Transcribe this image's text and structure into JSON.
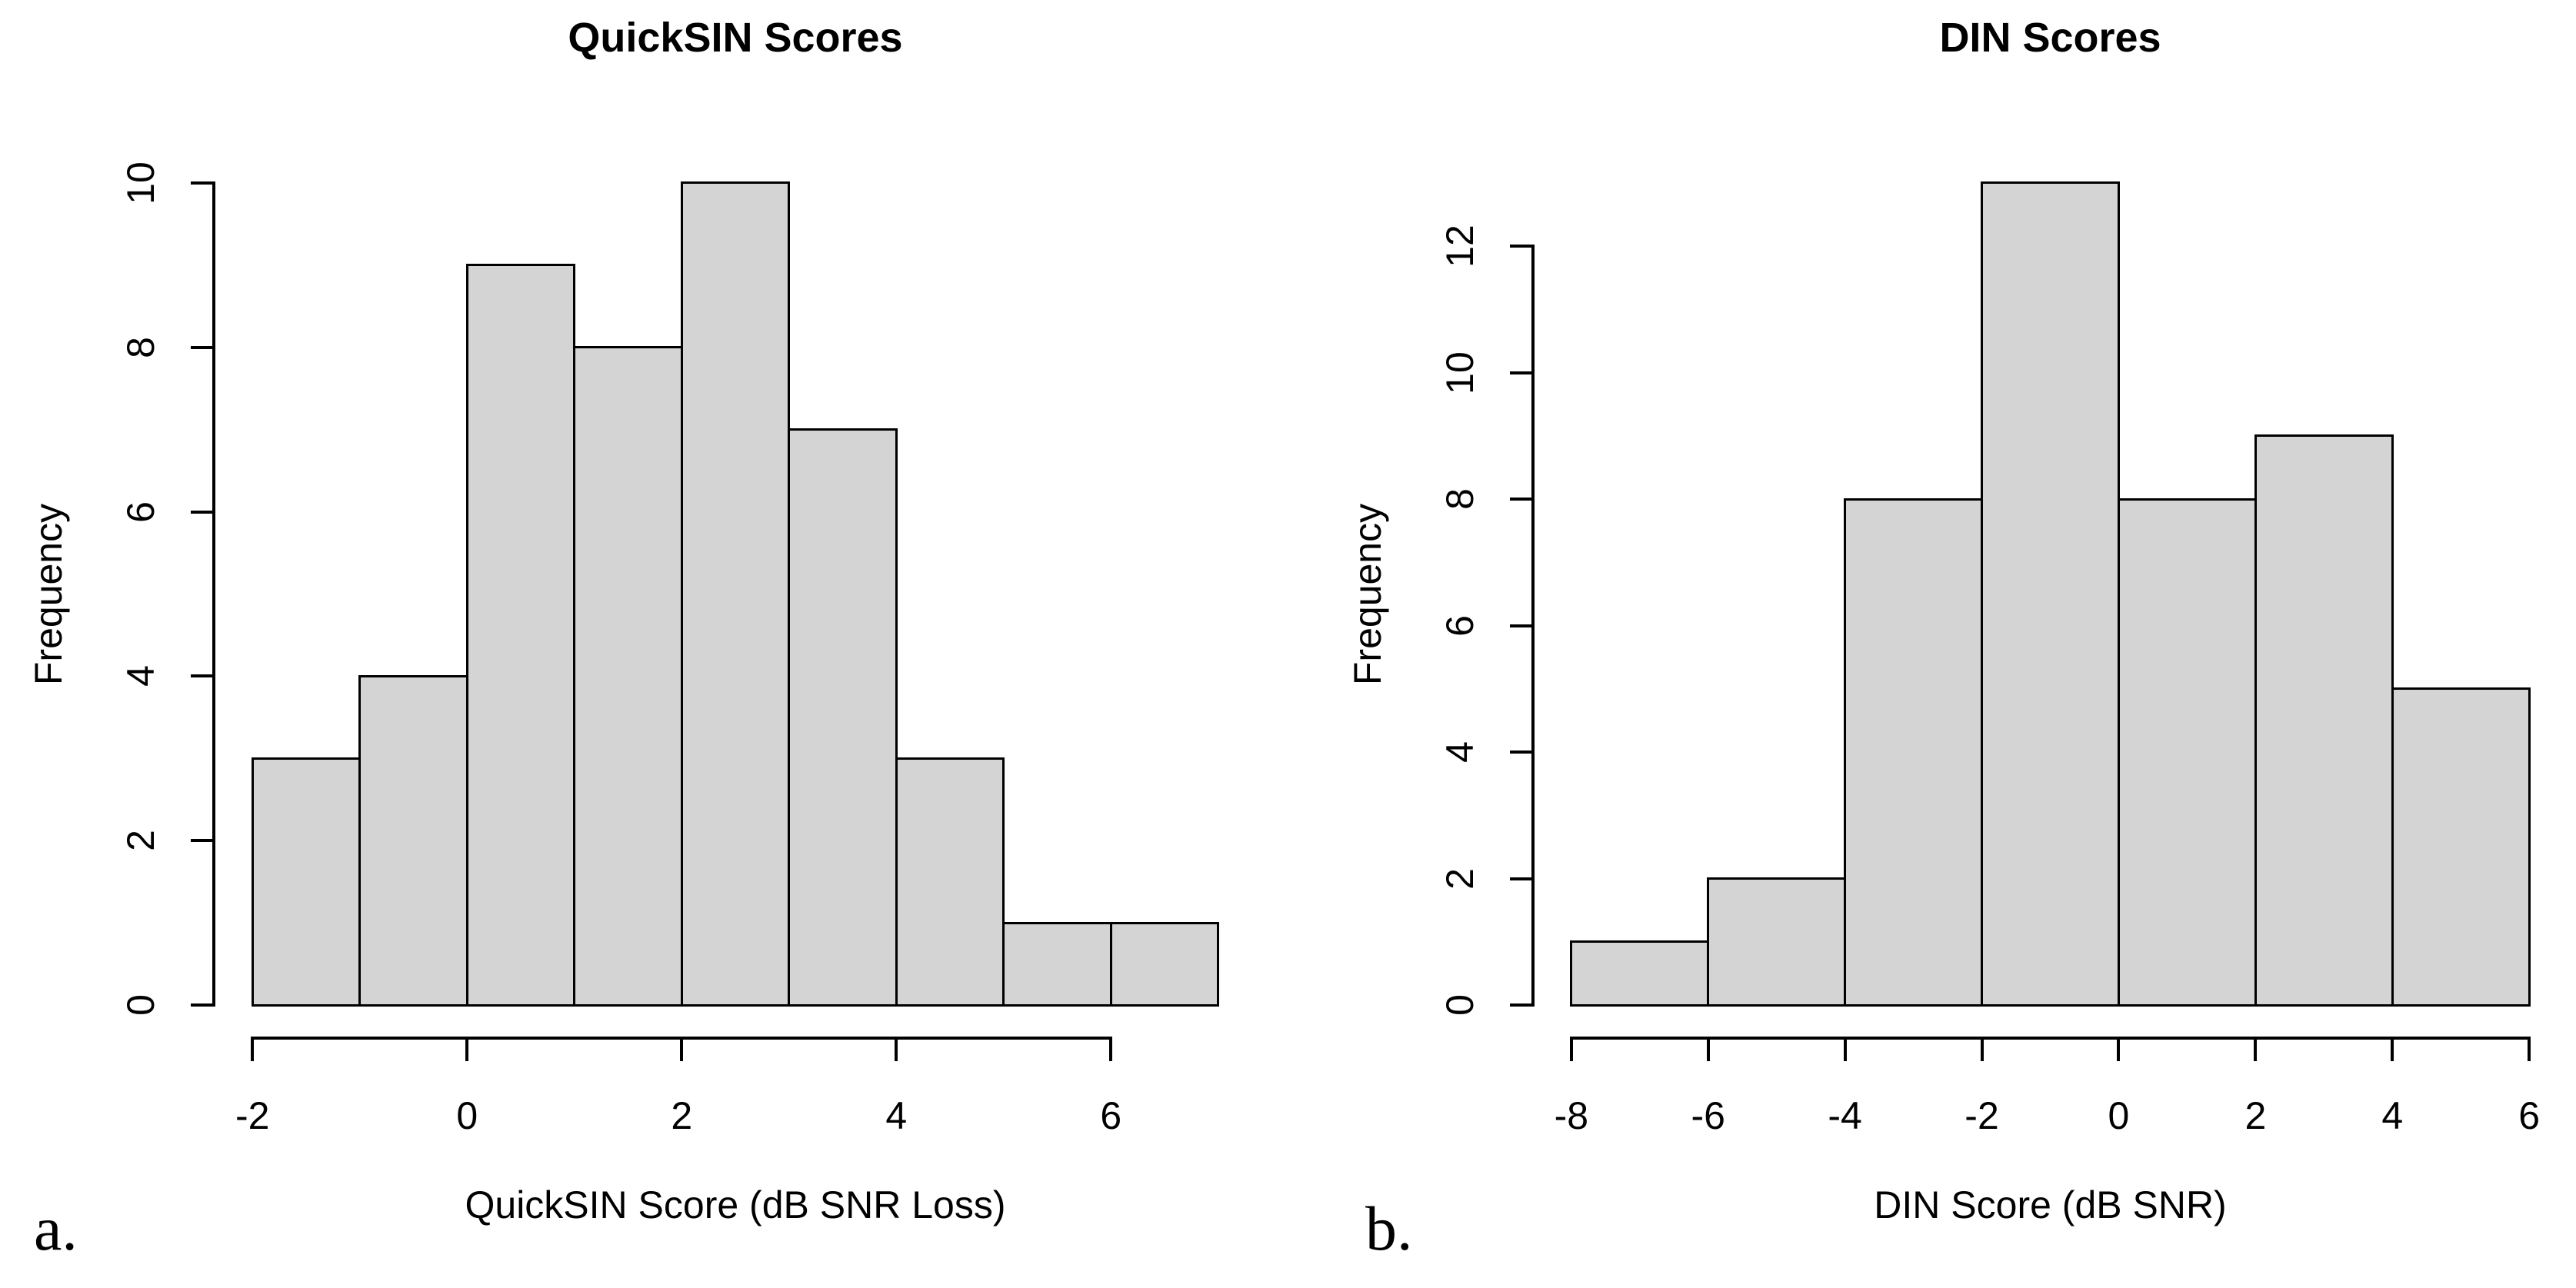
{
  "figure": {
    "kind": "two-panel histogram figure",
    "background": "#ffffff",
    "panels": [
      {
        "letter": "a."
      },
      {
        "letter": "b."
      }
    ]
  },
  "colors": {
    "bar_fill": "#d4d4d4",
    "bar_stroke": "#000000",
    "axis": "#000000",
    "text": "#000000"
  },
  "chart_data": [
    {
      "type": "bar",
      "subtype": "histogram",
      "title": "QuickSIN Scores",
      "xlabel": "QuickSIN Score (dB SNR Loss)",
      "ylabel": "Frequency",
      "bin_edges": [
        -2,
        -1,
        0,
        1,
        2,
        3,
        4,
        5,
        6,
        7
      ],
      "counts": [
        3,
        4,
        9,
        8,
        10,
        7,
        3,
        1,
        1
      ],
      "xlim": [
        -2,
        7
      ],
      "ylim": [
        0,
        10
      ],
      "x_ticks": [
        -2,
        0,
        2,
        4,
        6
      ],
      "x_tick_labels": [
        "-2",
        "0",
        "2",
        "4",
        "6"
      ],
      "y_ticks": [
        0,
        2,
        4,
        6,
        8,
        10
      ],
      "y_tick_labels": [
        "0",
        "2",
        "4",
        "6",
        "8",
        "10"
      ],
      "x_axis_span": [
        -2,
        6
      ],
      "y_axis_span": [
        0,
        10
      ],
      "grid": false,
      "legend": null
    },
    {
      "type": "bar",
      "subtype": "histogram",
      "title": "DIN Scores",
      "xlabel": "DIN Score (dB SNR)",
      "ylabel": "Frequency",
      "bin_edges": [
        -8,
        -6,
        -4,
        -2,
        0,
        2,
        4,
        6
      ],
      "counts": [
        1,
        2,
        8,
        13,
        8,
        9,
        5
      ],
      "xlim": [
        -8,
        6
      ],
      "ylim": [
        0,
        13
      ],
      "x_ticks": [
        -8,
        -6,
        -4,
        -2,
        0,
        2,
        4,
        6
      ],
      "x_tick_labels": [
        "-8",
        "-6",
        "-4",
        "-2",
        "0",
        "2",
        "4",
        "6"
      ],
      "y_ticks": [
        0,
        2,
        4,
        6,
        8,
        10,
        12
      ],
      "y_tick_labels": [
        "0",
        "2",
        "4",
        "6",
        "8",
        "10",
        "12"
      ],
      "x_axis_span": [
        -8,
        6
      ],
      "y_axis_span": [
        0,
        12
      ],
      "grid": false,
      "legend": null
    }
  ]
}
